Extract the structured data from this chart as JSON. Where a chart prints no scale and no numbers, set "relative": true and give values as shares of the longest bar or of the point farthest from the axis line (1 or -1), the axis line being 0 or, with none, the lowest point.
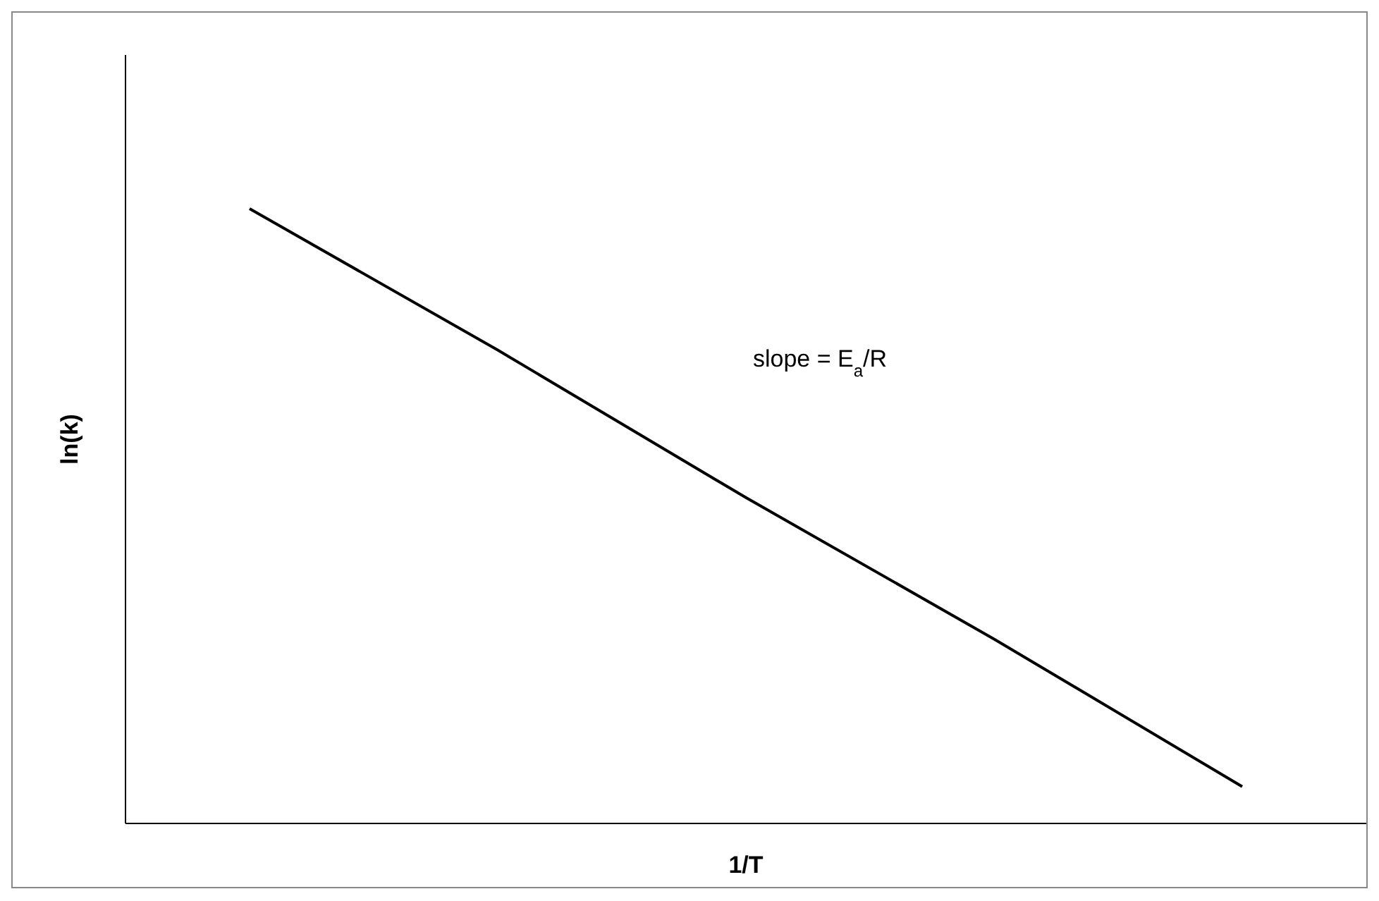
{
  "chart_data": {
    "type": "line",
    "relative": true,
    "xlabel": "1/T",
    "ylabel": "ln(k)",
    "categories": [
      null,
      null,
      null,
      null,
      null
    ],
    "series": [
      {
        "color": "#000000",
        "values": [
          1,
          0.77,
          0.53,
          0.3,
          0.06
        ]
      }
    ],
    "annotations": [
      "slope = E$_{a}$/R"
    ],
    "marker": "none",
    "line_style": "solid"
  }
}
